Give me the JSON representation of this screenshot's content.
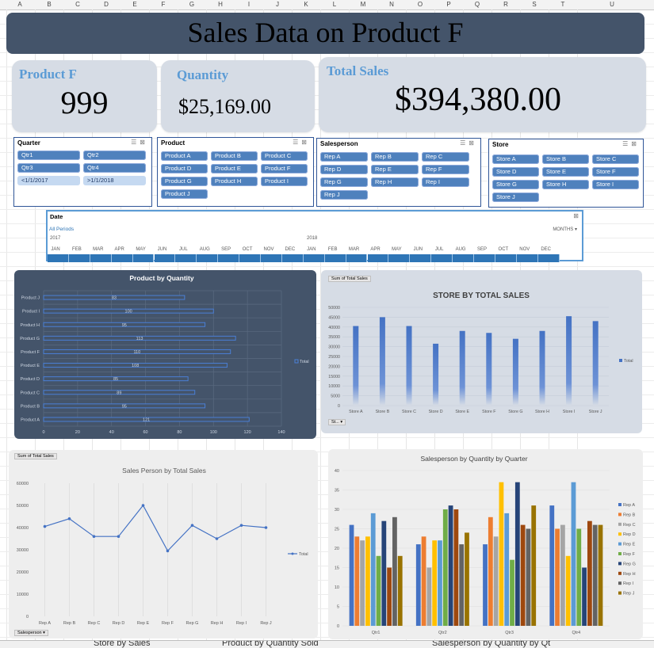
{
  "sheet": {
    "columns": [
      "A",
      "B",
      "C",
      "D",
      "E",
      "F",
      "G",
      "H",
      "I",
      "J",
      "K",
      "L",
      "M",
      "N",
      "O",
      "P",
      "Q",
      "R",
      "S",
      "T",
      "U"
    ],
    "tabs": [
      "Store by Sales",
      "Product by Quantity Sold",
      "Salesperson by Quantity by Qt"
    ]
  },
  "banner": {
    "title": "Sales Data on Product F"
  },
  "kpis": {
    "product": {
      "label": "Product F",
      "value": "999"
    },
    "quantity": {
      "label": "Quantity",
      "value": "$25,169.00"
    },
    "total": {
      "label": "Total Sales",
      "value": "$394,380.00"
    }
  },
  "slicers": {
    "quarter": {
      "title": "Quarter",
      "items": [
        "Qtr1",
        "Qtr2",
        "Qtr3",
        "Qtr4",
        "<1/1/2017",
        ">1/1/2018"
      ]
    },
    "product": {
      "title": "Product",
      "items": [
        "Product A",
        "Product B",
        "Product C",
        "Product D",
        "Product E",
        "Product F",
        "Product G",
        "Product H",
        "Product I",
        "Product J"
      ]
    },
    "salesperson": {
      "title": "Salesperson",
      "items": [
        "Rep A",
        "Rep B",
        "Rep C",
        "Rep D",
        "Rep E",
        "Rep F",
        "Rep G",
        "Rep H",
        "Rep I",
        "Rep J"
      ]
    },
    "store": {
      "title": "Store",
      "items": [
        "Store A",
        "Store B",
        "Store C",
        "Store D",
        "Store E",
        "Store F",
        "Store G",
        "Store H",
        "Store I",
        "Store J"
      ]
    },
    "icons": {
      "multiselect": "multi-select-icon",
      "clear": "clear-filter-icon"
    }
  },
  "timeline": {
    "title": "Date",
    "periods_label": "All Periods",
    "level_label": "MONTHS",
    "years": [
      "2017",
      "2018"
    ],
    "months": [
      "JAN",
      "FEB",
      "MAR",
      "APR",
      "MAY",
      "JUN",
      "JUL",
      "AUG",
      "SEP",
      "OCT",
      "NOV",
      "DEC",
      "JAN",
      "FEB",
      "MAR",
      "APR",
      "MAY",
      "JUN",
      "JUL",
      "AUG",
      "SEP",
      "OCT",
      "NOV",
      "DEC"
    ]
  },
  "colors": {
    "banner": "#44546a",
    "card": "#d6dce5",
    "accent": "#5b9bd5",
    "slicer_button": "#4f81bd",
    "dark_panel": "#44546a",
    "light_panel": "#d6dce5",
    "panel_grey": "#eeeeee"
  },
  "chart_data": [
    {
      "type": "bar",
      "orientation": "horizontal",
      "title": "Product by Quantity",
      "categories": [
        "Product J",
        "Product I",
        "Product H",
        "Product G",
        "Product F",
        "Product E",
        "Product D",
        "Product C",
        "Product B",
        "Product A"
      ],
      "series": [
        {
          "name": "Total",
          "values": [
            83,
            100,
            95,
            113,
            110,
            108,
            85,
            89,
            95,
            121
          ]
        }
      ],
      "data_labels": [
        "83",
        "100",
        "95",
        "113",
        "110",
        "108",
        "85",
        "89",
        "95",
        "121"
      ],
      "xlim": [
        0,
        140
      ],
      "xticks": [
        "0",
        "20",
        "40",
        "60",
        "80",
        "100",
        "120",
        "140"
      ],
      "legend": "right"
    },
    {
      "type": "bar",
      "title": "STORE BY TOTAL SALES",
      "field_button": "Sum of Total Sales",
      "axis_button": "St...",
      "categories": [
        "Store A",
        "Store B",
        "Store C",
        "Store D",
        "Store E",
        "Store F",
        "Store G",
        "Store H",
        "Store I",
        "Store J"
      ],
      "series": [
        {
          "name": "Total",
          "values": [
            40500,
            45000,
            40500,
            31500,
            38000,
            37000,
            34000,
            38000,
            45500,
            43000
          ]
        }
      ],
      "ylim": [
        0,
        50000
      ],
      "yticks": [
        "0",
        "5000",
        "10000",
        "15000",
        "20000",
        "25000",
        "30000",
        "35000",
        "40000",
        "45000",
        "50000"
      ],
      "legend": "right"
    },
    {
      "type": "line",
      "title": "Sales Person by Total Sales",
      "field_button": "Sum of Total Sales",
      "axis_button": "Salesperson",
      "categories": [
        "Rep A",
        "Rep B",
        "Rep C",
        "Rep D",
        "Rep E",
        "Rep F",
        "Rep G",
        "Rep H",
        "Rep I",
        "Rep J"
      ],
      "series": [
        {
          "name": "Total",
          "values": [
            40500,
            44000,
            36000,
            36000,
            50000,
            29500,
            41000,
            35000,
            41000,
            40000
          ]
        }
      ],
      "ylim": [
        0,
        60000
      ],
      "yticks": [
        "0",
        "10000",
        "20000",
        "30000",
        "40000",
        "50000",
        "60000"
      ],
      "legend": "right"
    },
    {
      "type": "bar",
      "title": "Salesperson by Quantity by Quarter",
      "categories": [
        "Qtr1",
        "Qtr2",
        "Qtr3",
        "Qtr4"
      ],
      "series": [
        {
          "name": "Rep A",
          "color": "#4472c4",
          "values": [
            26,
            21,
            21,
            31
          ]
        },
        {
          "name": "Rep B",
          "color": "#ed7d31",
          "values": [
            23,
            23,
            28,
            25
          ]
        },
        {
          "name": "Rep C",
          "color": "#a5a5a5",
          "values": [
            22,
            15,
            23,
            26
          ]
        },
        {
          "name": "Rep D",
          "color": "#ffc000",
          "values": [
            23,
            22,
            37,
            18
          ]
        },
        {
          "name": "Rep E",
          "color": "#5b9bd5",
          "values": [
            29,
            22,
            29,
            37
          ]
        },
        {
          "name": "Rep F",
          "color": "#70ad47",
          "values": [
            18,
            30,
            17,
            25
          ]
        },
        {
          "name": "Rep G",
          "color": "#264478",
          "values": [
            27,
            31,
            37,
            15
          ]
        },
        {
          "name": "Rep H",
          "color": "#9e480e",
          "values": [
            15,
            30,
            26,
            27
          ]
        },
        {
          "name": "Rep I",
          "color": "#636363",
          "values": [
            28,
            21,
            25,
            26
          ]
        },
        {
          "name": "Rep J",
          "color": "#997300",
          "values": [
            18,
            24,
            31,
            26
          ]
        }
      ],
      "ylim": [
        0,
        40
      ],
      "yticks": [
        "0",
        "5",
        "10",
        "15",
        "20",
        "25",
        "30",
        "35",
        "40"
      ],
      "legend": "right"
    }
  ]
}
